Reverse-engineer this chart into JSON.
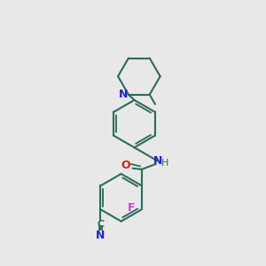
{
  "bg_color": "#e8e8e8",
  "bond_color": "#2d6b5a",
  "N_color": "#2222cc",
  "O_color": "#cc2020",
  "F_color": "#cc44cc",
  "line_width": 1.5,
  "figsize": [
    3.0,
    3.0
  ],
  "dpi": 100,
  "xlim": [
    0,
    10
  ],
  "ylim": [
    0,
    10
  ]
}
